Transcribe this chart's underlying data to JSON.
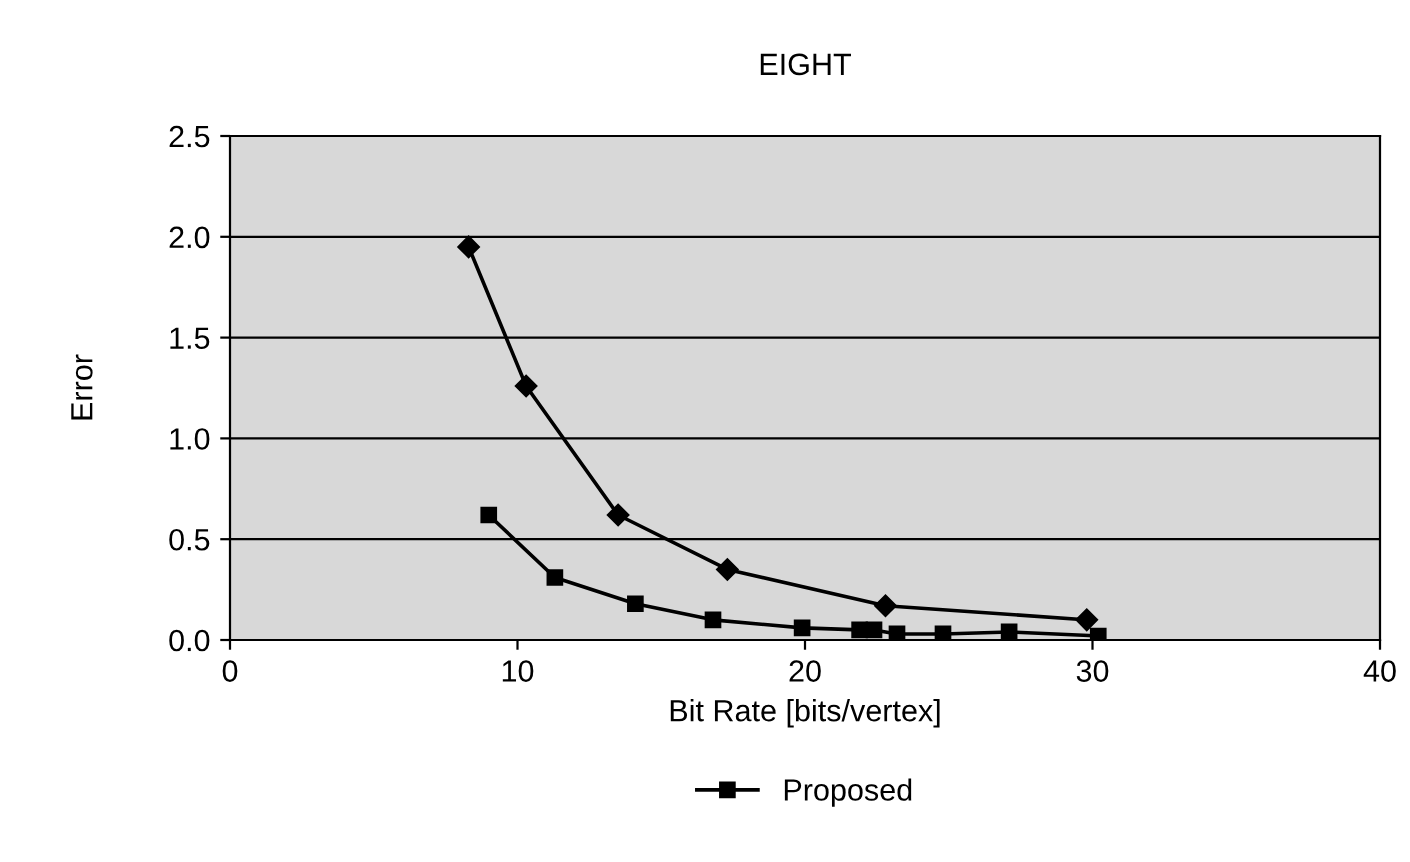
{
  "chart_data": {
    "type": "line",
    "title": "EIGHT",
    "xlabel": "Bit Rate [bits/vertex]",
    "ylabel": "Error",
    "xlim": [
      0,
      40
    ],
    "xticks": [
      0,
      10,
      20,
      30,
      40
    ],
    "ylim": [
      0,
      2.5
    ],
    "yticks": [
      {
        "value": 0,
        "label": "0.0"
      },
      {
        "value": 0.5,
        "label": "0.5"
      },
      {
        "value": 1.0,
        "label": "1.0"
      },
      {
        "value": 1.5,
        "label": "1.5"
      },
      {
        "value": 2.0,
        "label": "2.0"
      },
      {
        "value": 2.5,
        "label": "2.5"
      }
    ],
    "grid": "y",
    "legend": "bottom",
    "series": [
      {
        "color": "#000000",
        "marker": "diamond",
        "x": [
          8.3,
          10.3,
          13.5,
          17.3,
          22.8,
          29.8
        ],
        "values": [
          1.95,
          1.26,
          0.62,
          0.35,
          0.17,
          0.1
        ]
      },
      {
        "name": "Proposed",
        "color": "#000000",
        "marker": "square",
        "x": [
          9.0,
          11.3,
          14.1,
          16.8,
          19.9,
          21.9,
          22.4,
          23.2,
          24.8,
          27.1,
          30.2
        ],
        "values": [
          0.62,
          0.31,
          0.18,
          0.1,
          0.06,
          0.05,
          0.05,
          0.03,
          0.03,
          0.04,
          0.02
        ]
      }
    ]
  }
}
